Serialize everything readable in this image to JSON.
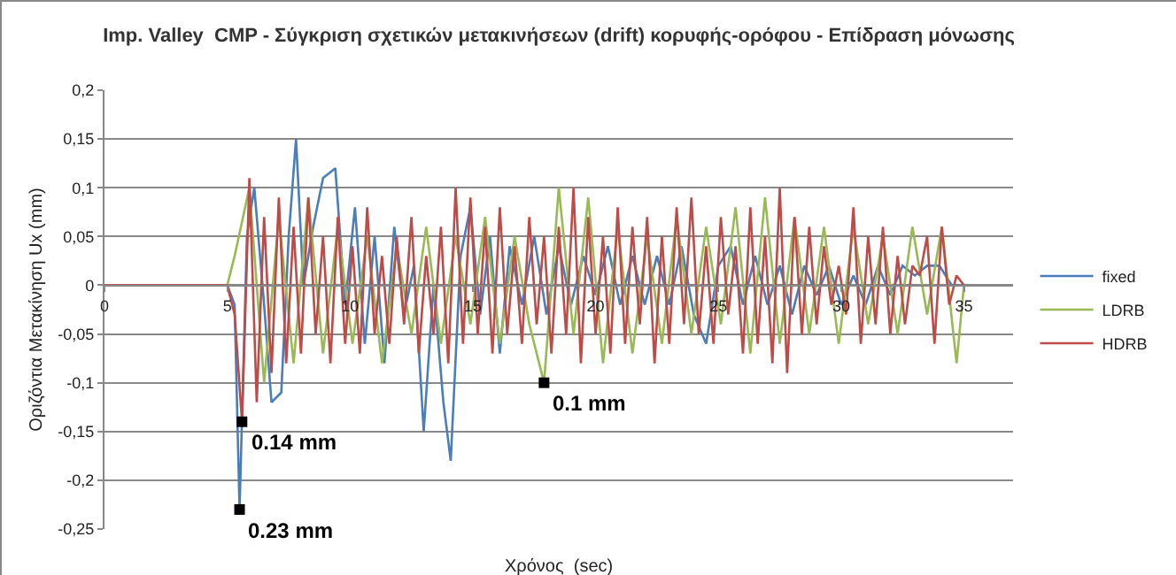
{
  "chart_data": {
    "type": "line",
    "title": "Imp. Valley  CMP - Σύγκριση σχετικών μετακινήσεων (drift) κορυφής-ορόφου - Επίδραση μόνωσης",
    "xlabel": "Χρόνος  (sec)",
    "ylabel": "Οριζόντια Μετακίνηση Ux (mm)",
    "xlim": [
      0,
      37
    ],
    "xticks": [
      0,
      5,
      10,
      15,
      20,
      25,
      30,
      35
    ],
    "ylim": [
      -0.25,
      0.2
    ],
    "yticks": [
      {
        "value": -0.25,
        "label": "-0,25"
      },
      {
        "value": -0.2,
        "label": "-0,2"
      },
      {
        "value": -0.15,
        "label": "-0,15"
      },
      {
        "value": -0.1,
        "label": "-0,1"
      },
      {
        "value": -0.05,
        "label": "-0,05"
      },
      {
        "value": 0,
        "label": "0"
      },
      {
        "value": 0.05,
        "label": "0,05"
      },
      {
        "value": 0.1,
        "label": "0,1"
      },
      {
        "value": 0.15,
        "label": "0,15"
      },
      {
        "value": 0.2,
        "label": "0,2"
      }
    ],
    "grid": "y",
    "legend": "right",
    "marker": "none",
    "line_style": "solid",
    "annotations": [
      {
        "text": "0.14 mm",
        "x": 5.6,
        "y": -0.14
      },
      {
        "text": "0.23 mm",
        "x": 5.5,
        "y": -0.23
      },
      {
        "text": "0.1 mm",
        "x": 17.9,
        "y": -0.1
      }
    ],
    "series": [
      {
        "name": "fixed",
        "color": "#4a7ebb",
        "x": [
          5,
          5.3,
          5.5,
          5.8,
          6.1,
          6.5,
          6.8,
          7.2,
          7.5,
          7.8,
          8.1,
          8.5,
          8.9,
          9.4,
          9.8,
          10.2,
          10.6,
          11,
          11.4,
          11.8,
          12.2,
          12.6,
          13,
          13.4,
          13.8,
          14.1,
          14.5,
          14.9,
          15.3,
          15.7,
          16.1,
          16.5,
          17,
          17.5,
          18,
          18.5,
          19,
          19.5,
          20,
          20.5,
          21,
          21.5,
          22,
          22.5,
          23,
          23.5,
          24,
          24.5,
          25,
          25.5,
          26,
          26.5,
          27,
          27.5,
          28,
          28.5,
          29,
          29.5,
          30,
          30.5,
          31,
          31.5,
          32,
          32.5,
          33,
          33.5,
          34,
          34.5,
          35
        ],
        "values": [
          0,
          -0.02,
          -0.23,
          0.05,
          0.1,
          -0.02,
          -0.12,
          -0.11,
          0.05,
          0.15,
          0.0,
          0.06,
          0.11,
          0.12,
          -0.02,
          0.08,
          -0.06,
          0.05,
          -0.08,
          0.06,
          -0.03,
          0.02,
          -0.15,
          0.0,
          -0.12,
          -0.18,
          0.03,
          0.08,
          -0.03,
          0.05,
          -0.07,
          0.04,
          -0.02,
          0.05,
          -0.03,
          0.04,
          -0.02,
          0.03,
          -0.01,
          0.04,
          -0.02,
          0.03,
          -0.02,
          0.03,
          -0.02,
          0.04,
          -0.03,
          -0.06,
          0.02,
          0.04,
          -0.02,
          0.03,
          -0.02,
          0.02,
          -0.03,
          0.02,
          -0.01,
          0.02,
          -0.02,
          0.01,
          -0.02,
          0.02,
          -0.01,
          0.02,
          0.01,
          0.02,
          0.02,
          0.0,
          0.0
        ]
      },
      {
        "name": "LDRB",
        "color": "#98b954",
        "x": [
          5,
          5.3,
          5.9,
          6.5,
          7.1,
          7.7,
          8.3,
          8.9,
          9.5,
          10.1,
          10.7,
          11.3,
          11.9,
          12.5,
          13.1,
          13.7,
          14.3,
          14.9,
          15.5,
          16.1,
          16.7,
          17.3,
          17.9,
          18.5,
          19.1,
          19.7,
          20.3,
          20.9,
          21.5,
          22.1,
          22.7,
          23.3,
          23.9,
          24.5,
          25.1,
          25.7,
          26.3,
          26.9,
          27.5,
          28.1,
          28.7,
          29.3,
          29.9,
          30.5,
          31.1,
          31.7,
          32.3,
          32.9,
          33.5,
          34.1,
          34.7,
          35
        ],
        "values": [
          0,
          0.03,
          0.1,
          -0.1,
          0.07,
          -0.08,
          0.09,
          -0.07,
          0.06,
          -0.06,
          0.05,
          -0.08,
          0.04,
          -0.05,
          0.06,
          -0.06,
          0.05,
          -0.04,
          0.07,
          -0.06,
          0.05,
          -0.04,
          -0.1,
          0.1,
          -0.05,
          0.09,
          -0.08,
          0.06,
          -0.07,
          0.05,
          -0.06,
          0.07,
          -0.05,
          0.06,
          -0.04,
          0.08,
          -0.07,
          0.09,
          -0.06,
          0.07,
          -0.05,
          0.06,
          -0.06,
          0.06,
          -0.04,
          0.05,
          -0.05,
          0.06,
          -0.03,
          0.06,
          -0.08,
          0.0
        ]
      },
      {
        "name": "HDRB",
        "color": "#be4b48",
        "x": [
          0,
          1,
          2,
          3,
          4,
          5,
          5.3,
          5.6,
          5.9,
          6.2,
          6.5,
          6.8,
          7.1,
          7.4,
          7.7,
          8.0,
          8.3,
          8.6,
          8.9,
          9.2,
          9.5,
          9.8,
          10.1,
          10.4,
          10.7,
          11.0,
          11.3,
          11.6,
          11.9,
          12.2,
          12.5,
          12.8,
          13.1,
          13.4,
          13.7,
          14.0,
          14.3,
          14.6,
          14.9,
          15.2,
          15.5,
          15.8,
          16.1,
          16.4,
          16.7,
          17.0,
          17.3,
          17.6,
          17.9,
          18.2,
          18.5,
          18.8,
          19.1,
          19.4,
          19.7,
          20.0,
          20.3,
          20.6,
          20.9,
          21.2,
          21.5,
          21.8,
          22.1,
          22.4,
          22.7,
          23.0,
          23.3,
          23.6,
          23.9,
          24.2,
          24.5,
          24.8,
          25.1,
          25.4,
          25.7,
          26.0,
          26.3,
          26.6,
          26.9,
          27.2,
          27.5,
          27.8,
          28.1,
          28.4,
          28.7,
          29.0,
          29.3,
          29.6,
          29.9,
          30.2,
          30.5,
          30.8,
          31.1,
          31.4,
          31.7,
          32.0,
          32.3,
          32.6,
          32.9,
          33.2,
          33.5,
          33.8,
          34.1,
          34.4,
          34.7,
          35.0
        ],
        "values": [
          0,
          0,
          0,
          0,
          0,
          0,
          -0.03,
          -0.14,
          0.11,
          -0.12,
          0.07,
          -0.09,
          0.09,
          -0.08,
          0.06,
          -0.07,
          0.09,
          -0.05,
          0.05,
          -0.08,
          0.07,
          -0.06,
          0.04,
          -0.07,
          0.08,
          -0.05,
          0.03,
          -0.06,
          0.05,
          -0.04,
          0.07,
          -0.07,
          0.03,
          -0.05,
          0.06,
          -0.08,
          0.1,
          -0.06,
          0.09,
          -0.05,
          0.06,
          -0.07,
          0.08,
          -0.05,
          0.04,
          -0.06,
          0.07,
          -0.04,
          0.05,
          -0.07,
          0.06,
          -0.05,
          0.1,
          -0.08,
          0.07,
          -0.05,
          0.05,
          -0.07,
          0.08,
          -0.06,
          0.06,
          -0.04,
          0.07,
          -0.08,
          0.05,
          -0.06,
          0.08,
          -0.04,
          0.09,
          -0.05,
          0.04,
          -0.06,
          0.07,
          -0.03,
          0.04,
          -0.07,
          0.08,
          -0.06,
          0.05,
          -0.08,
          0.1,
          -0.09,
          0.07,
          -0.05,
          0.06,
          -0.04,
          0.04,
          -0.02,
          0.02,
          -0.03,
          0.08,
          -0.06,
          0.05,
          -0.04,
          0.06,
          -0.05,
          0.03,
          -0.04,
          0.02,
          0.01,
          0.05,
          -0.06,
          0.06,
          -0.02,
          0.01,
          0.0
        ]
      }
    ]
  }
}
